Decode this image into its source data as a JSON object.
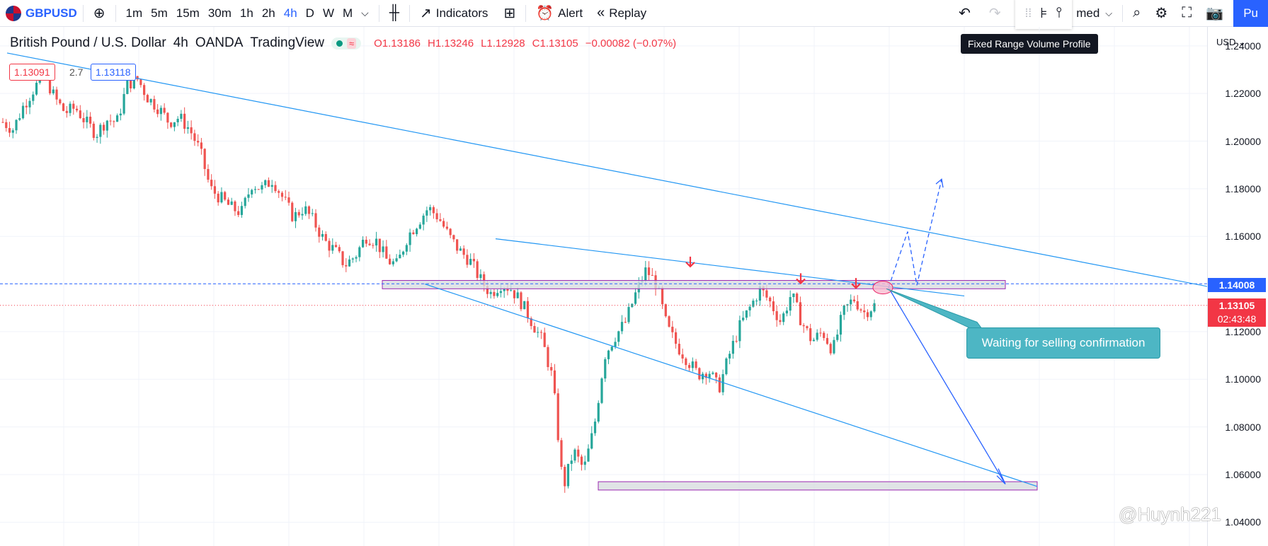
{
  "toolbar": {
    "symbol": "GBPUSD",
    "timeframes": [
      "1m",
      "5m",
      "15m",
      "30m",
      "1h",
      "2h",
      "4h",
      "D",
      "W",
      "M"
    ],
    "active_timeframe": "4h",
    "indicators_label": "Indicators",
    "alert_label": "Alert",
    "replay_label": "Replay",
    "layout_label": "med",
    "publish_label": "Pu"
  },
  "tooltip": "Fixed Range Volume Profile",
  "legend": {
    "instrument": "British Pound / U.S. Dollar",
    "interval": "4h",
    "broker": "OANDA",
    "platform": "TradingView",
    "open": "O1.13186",
    "high": "H1.13246",
    "low": "L1.12928",
    "close": "C1.13105",
    "change": "−0.00082 (−0.07%)"
  },
  "order_boxes": {
    "sell": "1.13091",
    "spread": "2.7",
    "buy": "1.13118"
  },
  "axis": {
    "currency": "USD",
    "ticks": [
      "1.24000",
      "1.22000",
      "1.20000",
      "1.18000",
      "1.16000",
      "1.14000",
      "1.12000",
      "1.10000",
      "1.08000",
      "1.06000",
      "1.04000"
    ],
    "line_price": "1.14008",
    "last_price": "1.13105",
    "countdown": "02:43:48"
  },
  "annotation": "Waiting for selling confirmation",
  "watermark": "@Huynh221",
  "colors": {
    "up": "#26a69a",
    "down": "#ef5350",
    "trend": "#2196f3",
    "accent": "#2962ff"
  },
  "chart_data": {
    "type": "candlestick",
    "ylim": [
      1.03,
      1.245
    ],
    "yticks": [
      1.24,
      1.22,
      1.2,
      1.18,
      1.16,
      1.14,
      1.12,
      1.1,
      1.08,
      1.06,
      1.04
    ],
    "close_path": [
      1.208,
      1.205,
      1.215,
      1.222,
      1.228,
      1.218,
      1.212,
      1.214,
      1.208,
      1.203,
      1.209,
      1.208,
      1.224,
      1.226,
      1.218,
      1.214,
      1.208,
      1.21,
      1.205,
      1.196,
      1.18,
      1.176,
      1.172,
      1.17,
      1.182,
      1.18,
      1.184,
      1.176,
      1.168,
      1.172,
      1.166,
      1.158,
      1.154,
      1.148,
      1.152,
      1.16,
      1.158,
      1.15,
      1.148,
      1.16,
      1.166,
      1.172,
      1.168,
      1.16,
      1.154,
      1.15,
      1.142,
      1.136,
      1.14,
      1.138,
      1.132,
      1.124,
      1.116,
      1.1,
      1.054,
      1.07,
      1.062,
      1.08,
      1.11,
      1.118,
      1.124,
      1.136,
      1.146,
      1.14,
      1.122,
      1.114,
      1.108,
      1.102,
      1.104,
      1.096,
      1.11,
      1.122,
      1.13,
      1.138,
      1.132,
      1.124,
      1.136,
      1.124,
      1.116,
      1.12,
      1.112,
      1.128,
      1.134,
      1.128,
      1.131
    ],
    "levels": [
      {
        "price": 1.14008,
        "label": "1.14008"
      },
      {
        "price": 1.13105,
        "label": "1.13105"
      }
    ]
  }
}
